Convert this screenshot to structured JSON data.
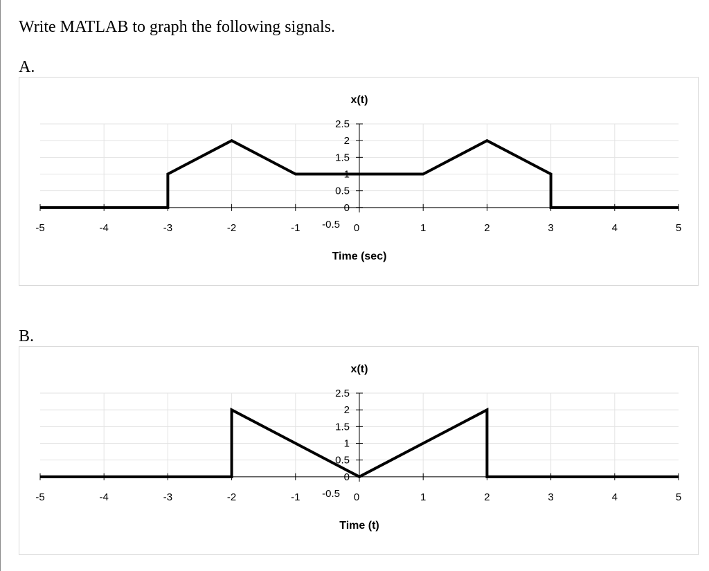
{
  "prompt": "Write MATLAB to graph the following signals.",
  "parts": [
    {
      "label": "A."
    },
    {
      "label": "B."
    }
  ],
  "chart_data": [
    {
      "type": "line",
      "title": "x(t)",
      "xlabel": "Time (sec)",
      "ylabel": "",
      "xlim": [
        -5,
        5
      ],
      "ylim": [
        -0.5,
        2.5
      ],
      "x_ticks": [
        "-5",
        "-4",
        "-3",
        "-2",
        "-1",
        "0",
        "1",
        "2",
        "3",
        "4",
        "5"
      ],
      "y_ticks": [
        "2.5",
        "2",
        "1.5",
        "1",
        "0.5",
        "0",
        "-0.5"
      ],
      "grid": true,
      "line_color": "#000000",
      "series": [
        {
          "x": [
            -5,
            -3,
            -3,
            -2,
            -1,
            1,
            2,
            3,
            3,
            5
          ],
          "y": [
            0,
            0,
            1,
            2,
            1,
            1,
            2,
            1,
            0,
            0
          ]
        }
      ]
    },
    {
      "type": "line",
      "title": "x(t)",
      "xlabel": "Time (t)",
      "ylabel": "",
      "xlim": [
        -5,
        5
      ],
      "ylim": [
        -0.5,
        2.5
      ],
      "x_ticks": [
        "-5",
        "-4",
        "-3",
        "-2",
        "-1",
        "0",
        "1",
        "2",
        "3",
        "4",
        "5"
      ],
      "y_ticks": [
        "2.5",
        "2",
        "1.5",
        "1",
        "0.5",
        "0",
        "-0.5"
      ],
      "grid": true,
      "line_color": "#000000",
      "series": [
        {
          "x": [
            -5,
            -2,
            -2,
            0,
            2,
            2,
            5
          ],
          "y": [
            0,
            0,
            2,
            0,
            2,
            0,
            0
          ]
        }
      ]
    }
  ]
}
